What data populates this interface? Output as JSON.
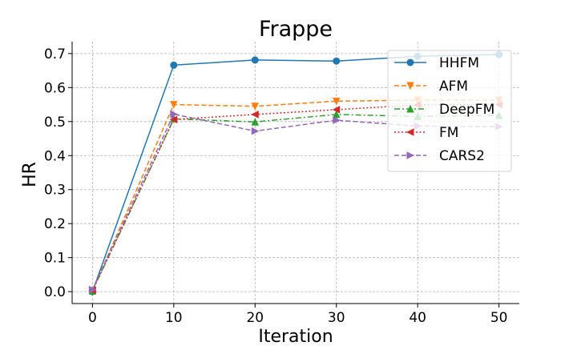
{
  "chart_data": {
    "type": "line",
    "title": "Frappe",
    "xlabel": "Iteration",
    "ylabel": "HR",
    "x": [
      0,
      10,
      20,
      30,
      40,
      50
    ],
    "xticks": [
      "0",
      "10",
      "20",
      "30",
      "40",
      "50"
    ],
    "yticks": [
      "0.0",
      "0.1",
      "0.2",
      "0.3",
      "0.4",
      "0.5",
      "0.6",
      "0.7"
    ],
    "xlim": [
      -2.5,
      52.5
    ],
    "ylim": [
      -0.035,
      0.735
    ],
    "grid": true,
    "legend_position": "top-right",
    "series": [
      {
        "name": "HHFM",
        "values": [
          0.0,
          0.666,
          0.681,
          0.678,
          0.692,
          0.697
        ],
        "color": "#1f77b4",
        "dash": "solid",
        "marker": "circle"
      },
      {
        "name": "AFM",
        "values": [
          0.003,
          0.55,
          0.545,
          0.56,
          0.563,
          0.563
        ],
        "color": "#ff7f0e",
        "dash": "dashed",
        "marker": "triangle-down"
      },
      {
        "name": "DeepFM",
        "values": [
          0.002,
          0.508,
          0.499,
          0.521,
          0.515,
          0.518
        ],
        "color": "#2ca02c",
        "dash": "dashdot",
        "marker": "triangle-up"
      },
      {
        "name": "FM",
        "values": [
          0.004,
          0.506,
          0.521,
          0.535,
          0.549,
          0.55
        ],
        "color": "#d62728",
        "dash": "dotted",
        "marker": "triangle-left"
      },
      {
        "name": "CARS2",
        "values": [
          0.006,
          0.522,
          0.472,
          0.504,
          0.487,
          0.485
        ],
        "color": "#9467bd",
        "dash": "dashed",
        "marker": "triangle-right"
      }
    ]
  }
}
